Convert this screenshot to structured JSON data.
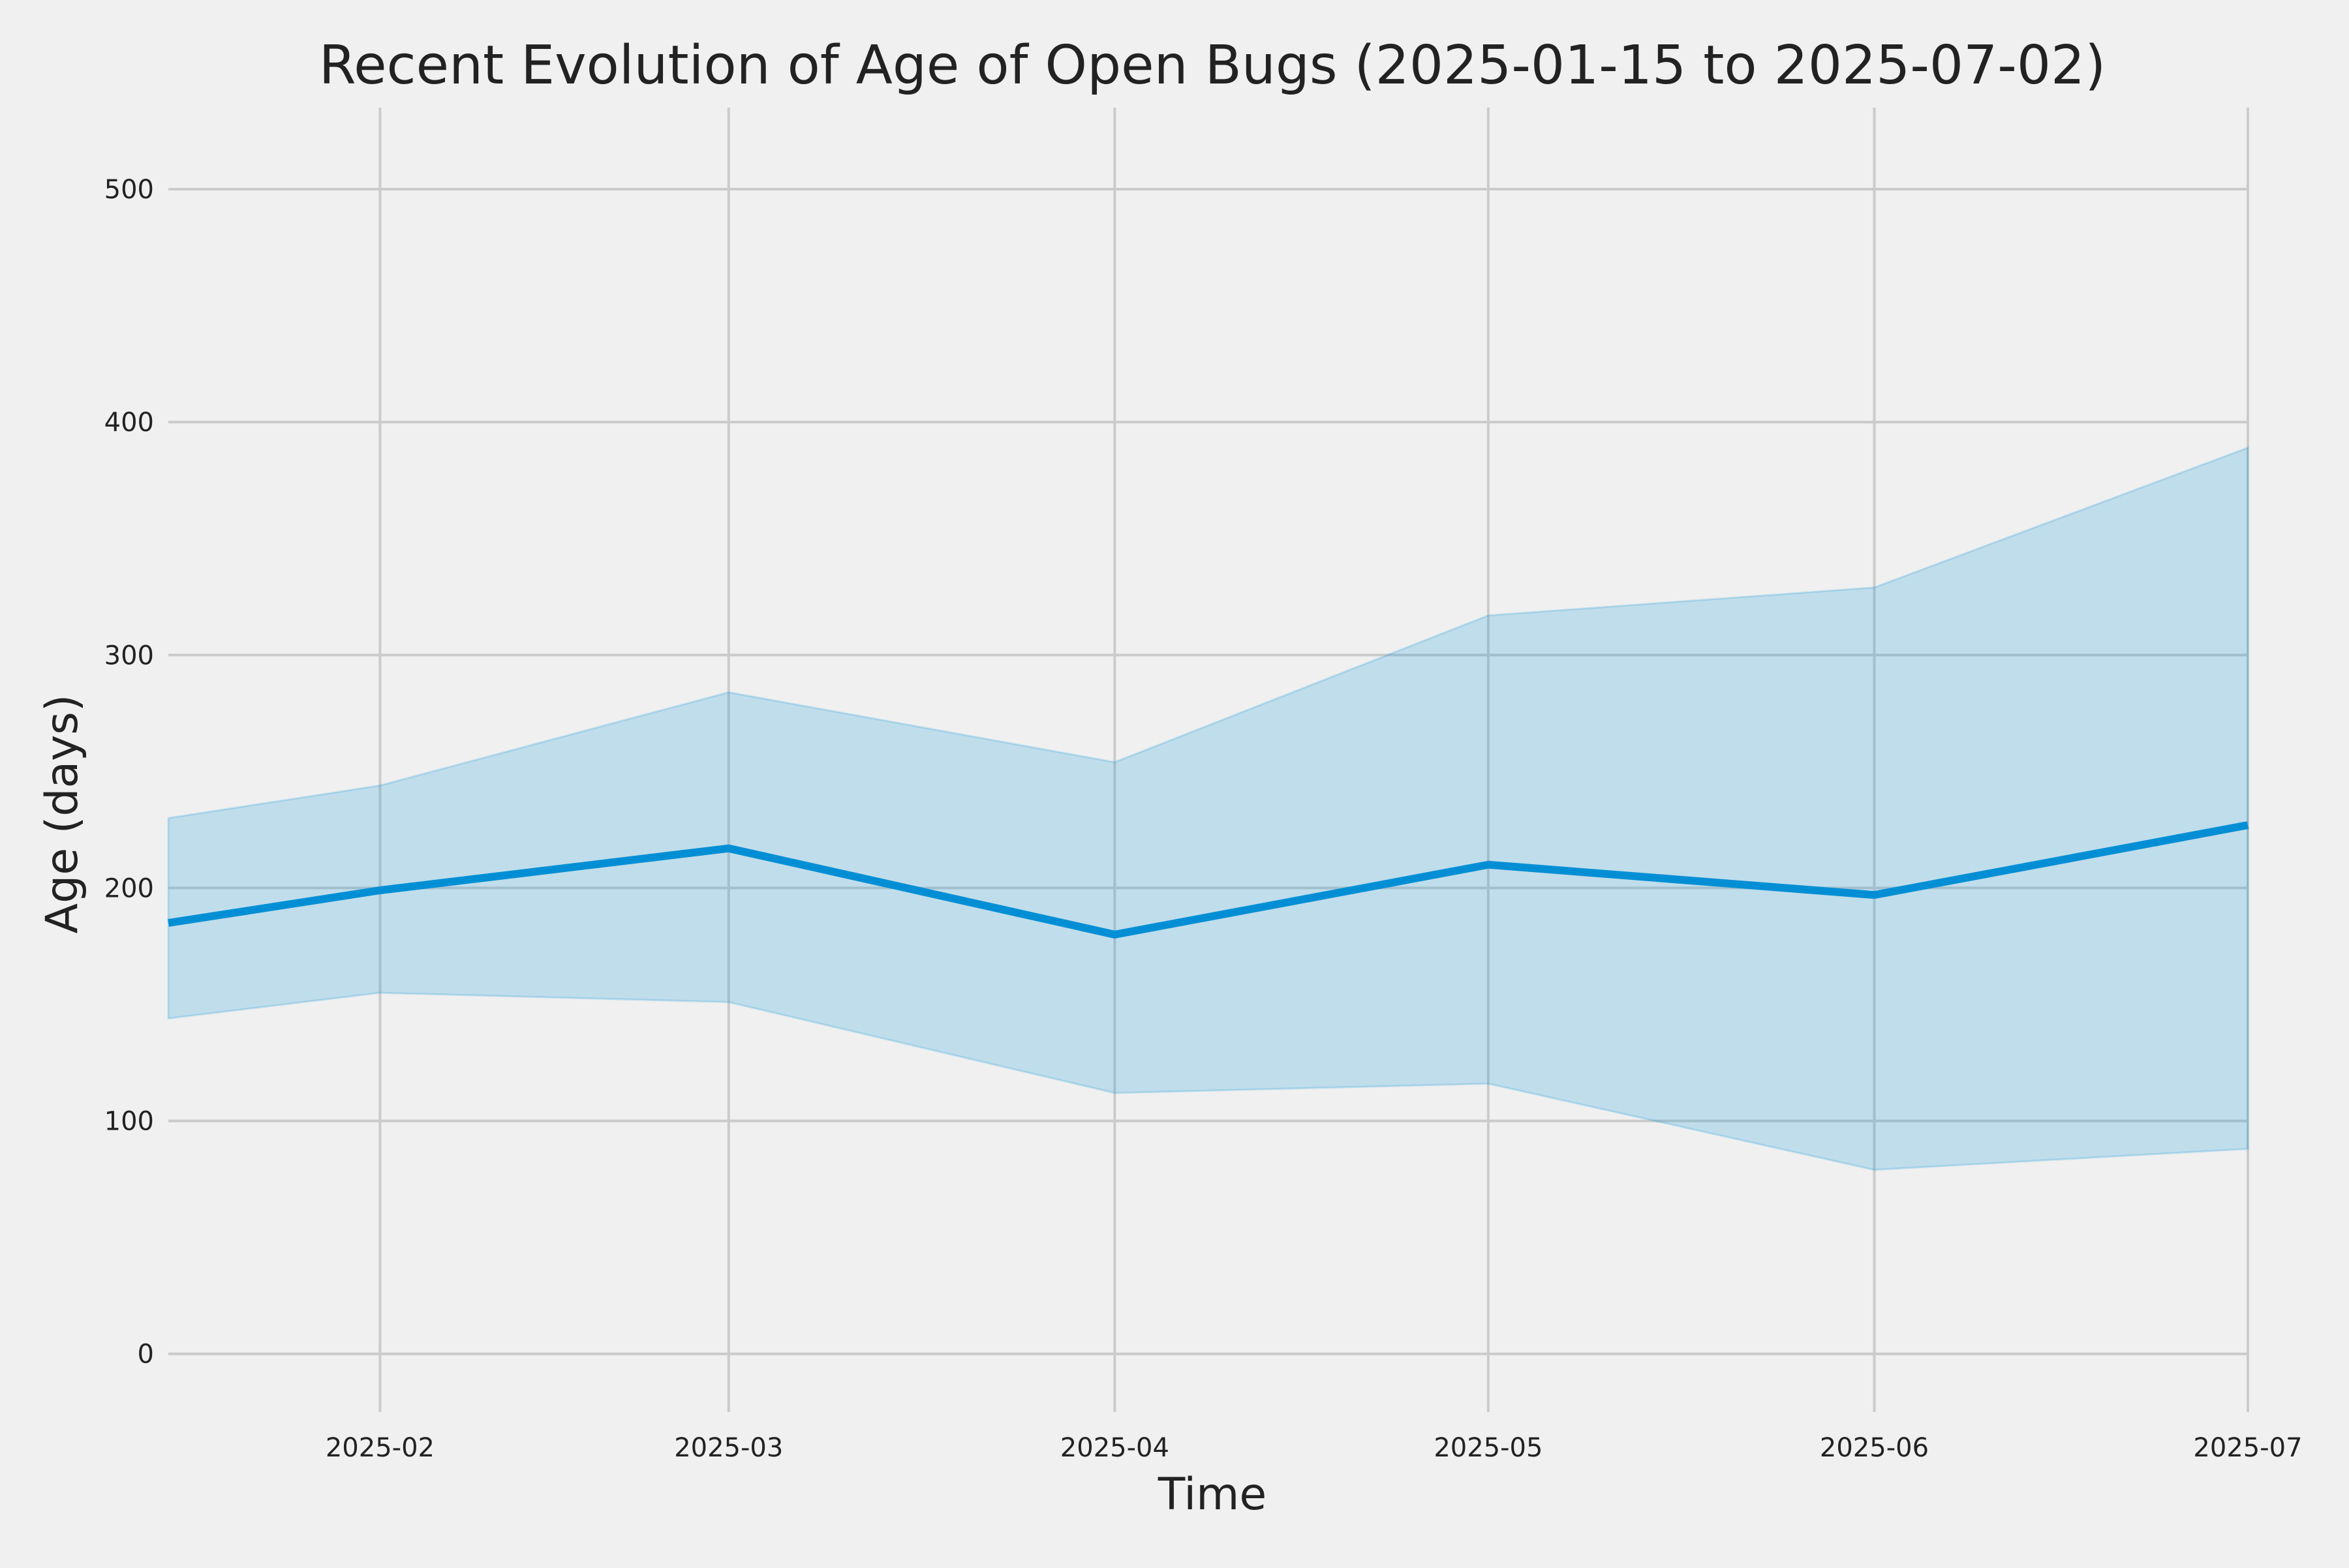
{
  "chart_data": {
    "type": "line",
    "title": "Recent Evolution of Age of Open Bugs (2025-01-15 to 2025-07-02)",
    "xlabel": "Time",
    "ylabel": "Age (days)",
    "x_axis_type": "date",
    "xlim": [
      "2025-01-15",
      "2025-07-01"
    ],
    "ylim": [
      -25,
      535
    ],
    "x_ticks": [
      "2025-02",
      "2025-03",
      "2025-04",
      "2025-05",
      "2025-06",
      "2025-07"
    ],
    "x_tick_dates": [
      "2025-02-01",
      "2025-03-01",
      "2025-04-01",
      "2025-05-01",
      "2025-06-01",
      "2025-07-01"
    ],
    "y_ticks": [
      0,
      100,
      200,
      300,
      400,
      500
    ],
    "grid": true,
    "legend": null,
    "series": [
      {
        "x": [
          "2025-01-15",
          "2025-02-01",
          "2025-03-01",
          "2025-04-01",
          "2025-05-01",
          "2025-06-01",
          "2025-07-01"
        ],
        "y": [
          185,
          199,
          217,
          180,
          210,
          197,
          227
        ],
        "band_upper": [
          230,
          244,
          284,
          254,
          317,
          329,
          389
        ],
        "band_lower": [
          144,
          155,
          151,
          112,
          116,
          79,
          88
        ],
        "color": "#008fd5",
        "band_color": "#008fd5"
      }
    ]
  }
}
